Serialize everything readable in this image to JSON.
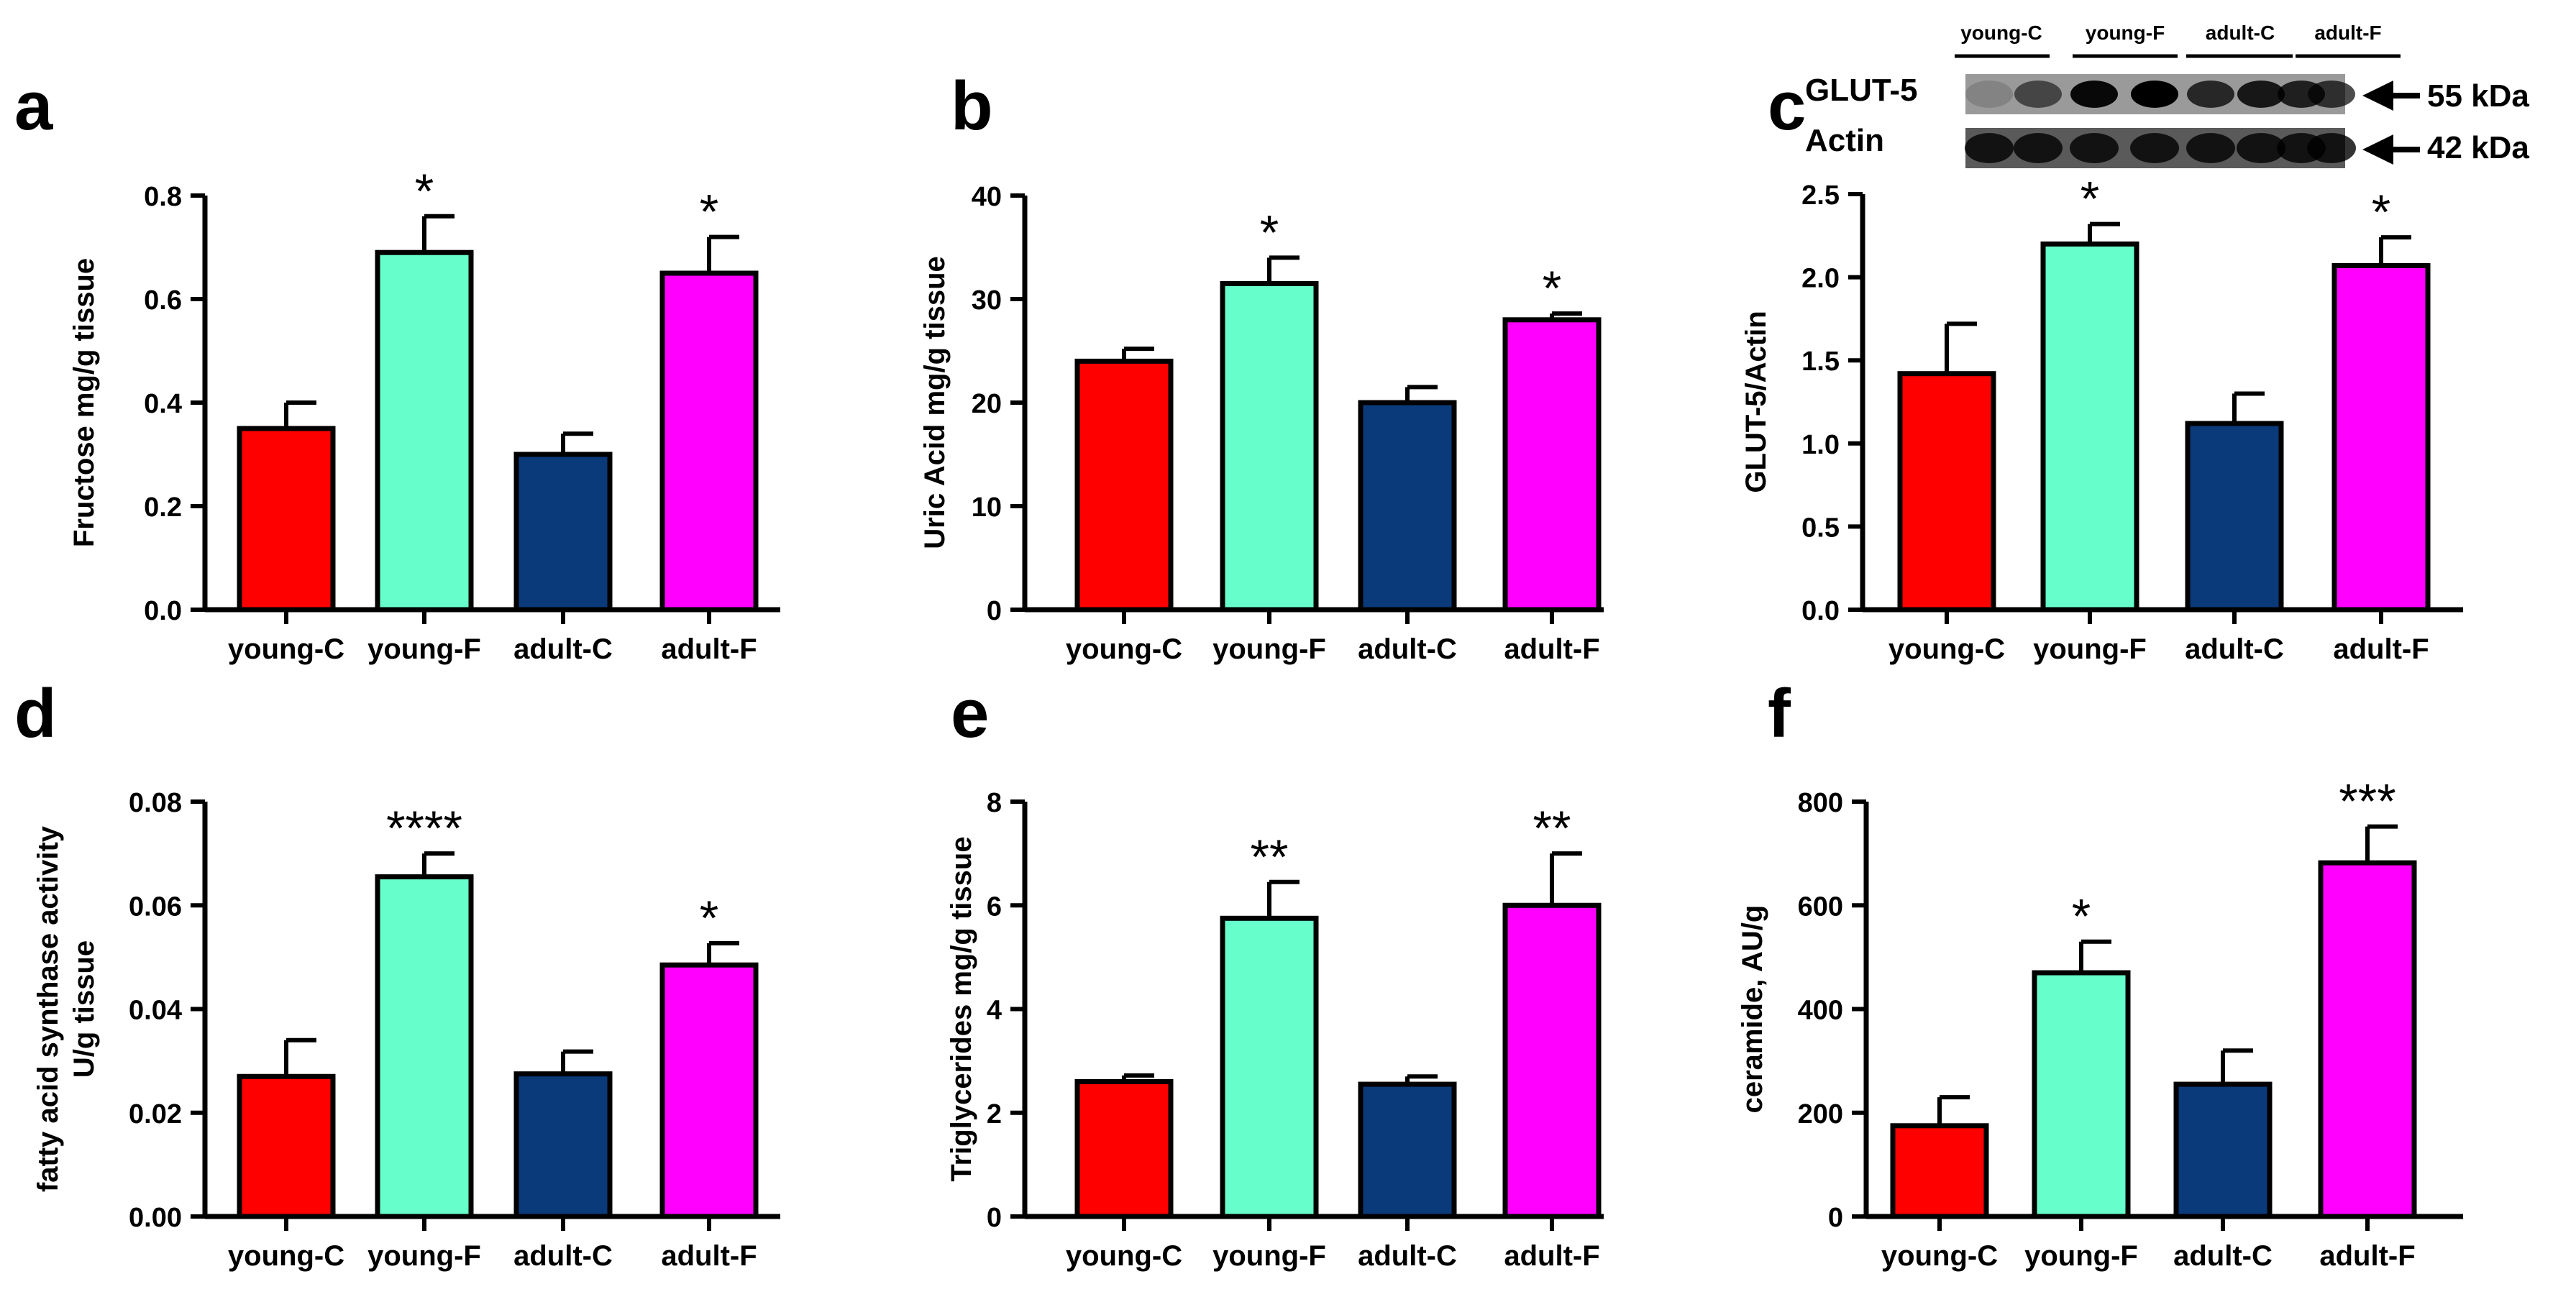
{
  "colors": {
    "young-C": "#ff0000",
    "young-F": "#66ffcc",
    "adult-C": "#0a3a7a",
    "adult-F": "#ff00ff"
  },
  "blot": {
    "lanes": [
      "young-C",
      "young-F",
      "adult-C",
      "adult-F"
    ],
    "rows": [
      {
        "label": "GLUT-5",
        "marker": "55 kDa"
      },
      {
        "label": "Actin",
        "marker": "42 kDa"
      }
    ]
  },
  "chart_data": [
    {
      "panel": "a",
      "type": "bar",
      "categories": [
        "young-C",
        "young-F",
        "adult-C",
        "adult-F"
      ],
      "values": [
        0.35,
        0.69,
        0.3,
        0.65
      ],
      "errors": [
        0.05,
        0.07,
        0.04,
        0.07
      ],
      "significance": [
        "",
        "*",
        "",
        "*"
      ],
      "ylabel": "Fructose mg/g tissue",
      "ylabel2": "",
      "ylim": [
        0,
        0.8
      ],
      "yticks": [
        0,
        0.2,
        0.4,
        0.6,
        0.8
      ],
      "decimals": 1
    },
    {
      "panel": "b",
      "type": "bar",
      "categories": [
        "young-C",
        "young-F",
        "adult-C",
        "adult-F"
      ],
      "values": [
        24,
        31.5,
        20,
        28
      ],
      "errors": [
        1.2,
        2.5,
        1.5,
        0.6
      ],
      "significance": [
        "",
        "*",
        "",
        "*"
      ],
      "ylabel": "Uric Acid mg/g tissue",
      "ylabel2": "",
      "ylim": [
        0,
        40
      ],
      "yticks": [
        0,
        10,
        20,
        30,
        40
      ],
      "decimals": 0
    },
    {
      "panel": "c",
      "type": "bar",
      "categories": [
        "young-C",
        "young-F",
        "adult-C",
        "adult-F"
      ],
      "values": [
        1.42,
        2.2,
        1.12,
        2.07
      ],
      "errors": [
        0.3,
        0.12,
        0.18,
        0.17
      ],
      "significance": [
        "",
        "*",
        "",
        "*"
      ],
      "ylabel": "GLUT-5/Actin",
      "ylabel2": "",
      "ylim": [
        0,
        2.5
      ],
      "yticks": [
        0,
        0.5,
        1.0,
        1.5,
        2.0,
        2.5
      ],
      "decimals": 1
    },
    {
      "panel": "d",
      "type": "bar",
      "categories": [
        "young-C",
        "young-F",
        "adult-C",
        "adult-F"
      ],
      "values": [
        0.027,
        0.0655,
        0.0275,
        0.0485
      ],
      "errors": [
        0.007,
        0.0045,
        0.0043,
        0.0042
      ],
      "significance": [
        "",
        "****",
        "",
        "*"
      ],
      "ylabel": "fatty acid synthase activity",
      "ylabel2": "U/g tissue",
      "ylim": [
        0,
        0.08
      ],
      "yticks": [
        0,
        0.02,
        0.04,
        0.06,
        0.08
      ],
      "decimals": 2
    },
    {
      "panel": "e",
      "type": "bar",
      "categories": [
        "young-C",
        "young-F",
        "adult-C",
        "adult-F"
      ],
      "values": [
        2.6,
        5.75,
        2.55,
        6.0
      ],
      "errors": [
        0.12,
        0.7,
        0.15,
        1.0
      ],
      "significance": [
        "",
        "**",
        "",
        "**"
      ],
      "ylabel": "Triglycerides mg/g tissue",
      "ylabel2": "",
      "ylim": [
        0,
        8
      ],
      "yticks": [
        0,
        2,
        4,
        6,
        8
      ],
      "decimals": 0
    },
    {
      "panel": "f",
      "type": "bar",
      "categories": [
        "young-C",
        "young-F",
        "adult-C",
        "adult-F"
      ],
      "values": [
        175,
        470,
        255,
        682
      ],
      "errors": [
        55,
        60,
        65,
        70
      ],
      "significance": [
        "",
        "*",
        "",
        "***"
      ],
      "ylabel": "ceramide, AU/g",
      "ylabel2": "",
      "ylim": [
        0,
        800
      ],
      "yticks": [
        0,
        200,
        400,
        600,
        800
      ],
      "decimals": 0
    }
  ]
}
